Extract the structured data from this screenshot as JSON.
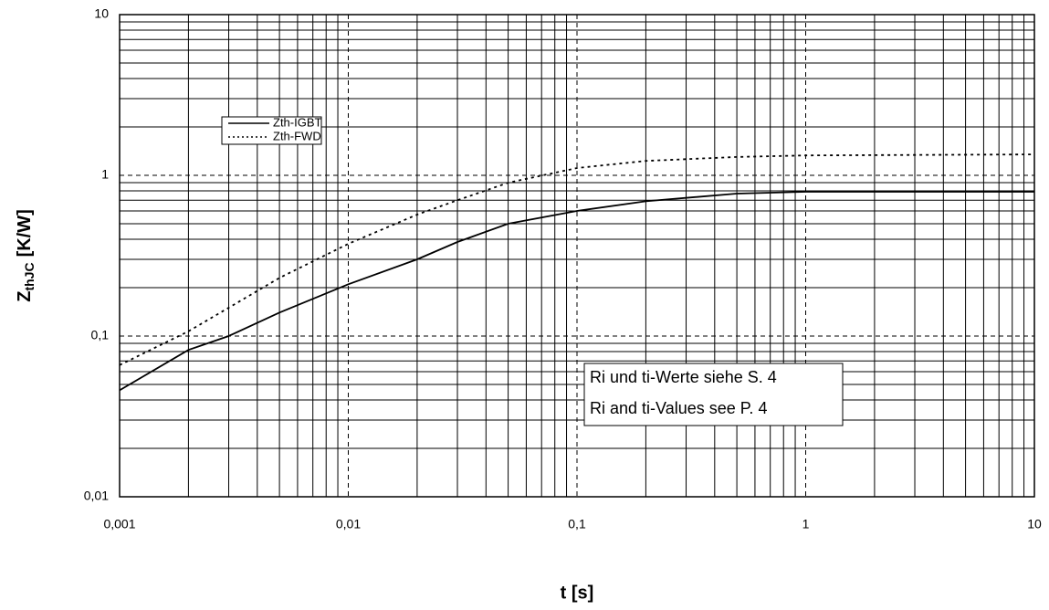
{
  "chart_data": {
    "type": "line",
    "x_label": "t [s]",
    "y_label": {
      "main": "Z",
      "sub": "thJC",
      "unit": "[K/W]"
    },
    "x": [
      0.001,
      0.002,
      0.003,
      0.005,
      0.01,
      0.02,
      0.03,
      0.05,
      0.1,
      0.2,
      0.5,
      1,
      10
    ],
    "series": [
      {
        "name": "Zth-IGBT",
        "color": "#000000",
        "style": "solid",
        "values": [
          0.046,
          0.082,
          0.1,
          0.14,
          0.21,
          0.3,
          0.385,
          0.5,
          0.6,
          0.69,
          0.77,
          0.79,
          0.79
        ]
      },
      {
        "name": "Zth-FWD",
        "color": "#000000",
        "style": "dotted",
        "values": [
          0.066,
          0.107,
          0.15,
          0.23,
          0.375,
          0.57,
          0.7,
          0.9,
          1.11,
          1.23,
          1.3,
          1.33,
          1.35
        ]
      }
    ],
    "xlim": [
      0.001,
      10
    ],
    "ylim": [
      0.01,
      10
    ],
    "xticks": [
      {
        "value": 0.001,
        "label": "0,001"
      },
      {
        "value": 0.01,
        "label": "0,01"
      },
      {
        "value": 0.1,
        "label": "0,1"
      },
      1,
      10
    ],
    "yticks": [
      {
        "value": 0.01,
        "label": "0,01"
      },
      {
        "value": 0.1,
        "label": "0,1"
      },
      1,
      10
    ],
    "xscale": "log",
    "yscale": "log",
    "grid": true,
    "annotations": [
      "Ri und ti-Werte siehe S. 4",
      "Ri and ti-Values see  P. 4"
    ]
  }
}
